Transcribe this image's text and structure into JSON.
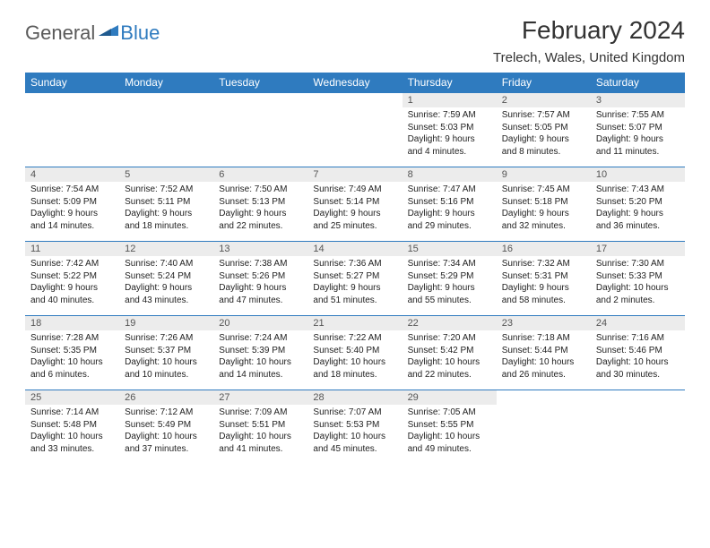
{
  "logo": {
    "text1": "General",
    "text2": "Blue"
  },
  "title": "February 2024",
  "location": "Trelech, Wales, United Kingdom",
  "colors": {
    "header_bg": "#2f7bbf",
    "header_text": "#ffffff",
    "daynum_bg": "#ececec",
    "daynum_text": "#555555",
    "border": "#2f7bbf",
    "body_text": "#222222",
    "logo_gray": "#5a5a5a",
    "logo_blue": "#2f7bbf"
  },
  "weekdays": [
    "Sunday",
    "Monday",
    "Tuesday",
    "Wednesday",
    "Thursday",
    "Friday",
    "Saturday"
  ],
  "weeks": [
    [
      null,
      null,
      null,
      null,
      {
        "n": "1",
        "sr": "Sunrise: 7:59 AM",
        "ss": "Sunset: 5:03 PM",
        "d1": "Daylight: 9 hours",
        "d2": "and 4 minutes."
      },
      {
        "n": "2",
        "sr": "Sunrise: 7:57 AM",
        "ss": "Sunset: 5:05 PM",
        "d1": "Daylight: 9 hours",
        "d2": "and 8 minutes."
      },
      {
        "n": "3",
        "sr": "Sunrise: 7:55 AM",
        "ss": "Sunset: 5:07 PM",
        "d1": "Daylight: 9 hours",
        "d2": "and 11 minutes."
      }
    ],
    [
      {
        "n": "4",
        "sr": "Sunrise: 7:54 AM",
        "ss": "Sunset: 5:09 PM",
        "d1": "Daylight: 9 hours",
        "d2": "and 14 minutes."
      },
      {
        "n": "5",
        "sr": "Sunrise: 7:52 AM",
        "ss": "Sunset: 5:11 PM",
        "d1": "Daylight: 9 hours",
        "d2": "and 18 minutes."
      },
      {
        "n": "6",
        "sr": "Sunrise: 7:50 AM",
        "ss": "Sunset: 5:13 PM",
        "d1": "Daylight: 9 hours",
        "d2": "and 22 minutes."
      },
      {
        "n": "7",
        "sr": "Sunrise: 7:49 AM",
        "ss": "Sunset: 5:14 PM",
        "d1": "Daylight: 9 hours",
        "d2": "and 25 minutes."
      },
      {
        "n": "8",
        "sr": "Sunrise: 7:47 AM",
        "ss": "Sunset: 5:16 PM",
        "d1": "Daylight: 9 hours",
        "d2": "and 29 minutes."
      },
      {
        "n": "9",
        "sr": "Sunrise: 7:45 AM",
        "ss": "Sunset: 5:18 PM",
        "d1": "Daylight: 9 hours",
        "d2": "and 32 minutes."
      },
      {
        "n": "10",
        "sr": "Sunrise: 7:43 AM",
        "ss": "Sunset: 5:20 PM",
        "d1": "Daylight: 9 hours",
        "d2": "and 36 minutes."
      }
    ],
    [
      {
        "n": "11",
        "sr": "Sunrise: 7:42 AM",
        "ss": "Sunset: 5:22 PM",
        "d1": "Daylight: 9 hours",
        "d2": "and 40 minutes."
      },
      {
        "n": "12",
        "sr": "Sunrise: 7:40 AM",
        "ss": "Sunset: 5:24 PM",
        "d1": "Daylight: 9 hours",
        "d2": "and 43 minutes."
      },
      {
        "n": "13",
        "sr": "Sunrise: 7:38 AM",
        "ss": "Sunset: 5:26 PM",
        "d1": "Daylight: 9 hours",
        "d2": "and 47 minutes."
      },
      {
        "n": "14",
        "sr": "Sunrise: 7:36 AM",
        "ss": "Sunset: 5:27 PM",
        "d1": "Daylight: 9 hours",
        "d2": "and 51 minutes."
      },
      {
        "n": "15",
        "sr": "Sunrise: 7:34 AM",
        "ss": "Sunset: 5:29 PM",
        "d1": "Daylight: 9 hours",
        "d2": "and 55 minutes."
      },
      {
        "n": "16",
        "sr": "Sunrise: 7:32 AM",
        "ss": "Sunset: 5:31 PM",
        "d1": "Daylight: 9 hours",
        "d2": "and 58 minutes."
      },
      {
        "n": "17",
        "sr": "Sunrise: 7:30 AM",
        "ss": "Sunset: 5:33 PM",
        "d1": "Daylight: 10 hours",
        "d2": "and 2 minutes."
      }
    ],
    [
      {
        "n": "18",
        "sr": "Sunrise: 7:28 AM",
        "ss": "Sunset: 5:35 PM",
        "d1": "Daylight: 10 hours",
        "d2": "and 6 minutes."
      },
      {
        "n": "19",
        "sr": "Sunrise: 7:26 AM",
        "ss": "Sunset: 5:37 PM",
        "d1": "Daylight: 10 hours",
        "d2": "and 10 minutes."
      },
      {
        "n": "20",
        "sr": "Sunrise: 7:24 AM",
        "ss": "Sunset: 5:39 PM",
        "d1": "Daylight: 10 hours",
        "d2": "and 14 minutes."
      },
      {
        "n": "21",
        "sr": "Sunrise: 7:22 AM",
        "ss": "Sunset: 5:40 PM",
        "d1": "Daylight: 10 hours",
        "d2": "and 18 minutes."
      },
      {
        "n": "22",
        "sr": "Sunrise: 7:20 AM",
        "ss": "Sunset: 5:42 PM",
        "d1": "Daylight: 10 hours",
        "d2": "and 22 minutes."
      },
      {
        "n": "23",
        "sr": "Sunrise: 7:18 AM",
        "ss": "Sunset: 5:44 PM",
        "d1": "Daylight: 10 hours",
        "d2": "and 26 minutes."
      },
      {
        "n": "24",
        "sr": "Sunrise: 7:16 AM",
        "ss": "Sunset: 5:46 PM",
        "d1": "Daylight: 10 hours",
        "d2": "and 30 minutes."
      }
    ],
    [
      {
        "n": "25",
        "sr": "Sunrise: 7:14 AM",
        "ss": "Sunset: 5:48 PM",
        "d1": "Daylight: 10 hours",
        "d2": "and 33 minutes."
      },
      {
        "n": "26",
        "sr": "Sunrise: 7:12 AM",
        "ss": "Sunset: 5:49 PM",
        "d1": "Daylight: 10 hours",
        "d2": "and 37 minutes."
      },
      {
        "n": "27",
        "sr": "Sunrise: 7:09 AM",
        "ss": "Sunset: 5:51 PM",
        "d1": "Daylight: 10 hours",
        "d2": "and 41 minutes."
      },
      {
        "n": "28",
        "sr": "Sunrise: 7:07 AM",
        "ss": "Sunset: 5:53 PM",
        "d1": "Daylight: 10 hours",
        "d2": "and 45 minutes."
      },
      {
        "n": "29",
        "sr": "Sunrise: 7:05 AM",
        "ss": "Sunset: 5:55 PM",
        "d1": "Daylight: 10 hours",
        "d2": "and 49 minutes."
      },
      null,
      null
    ]
  ]
}
